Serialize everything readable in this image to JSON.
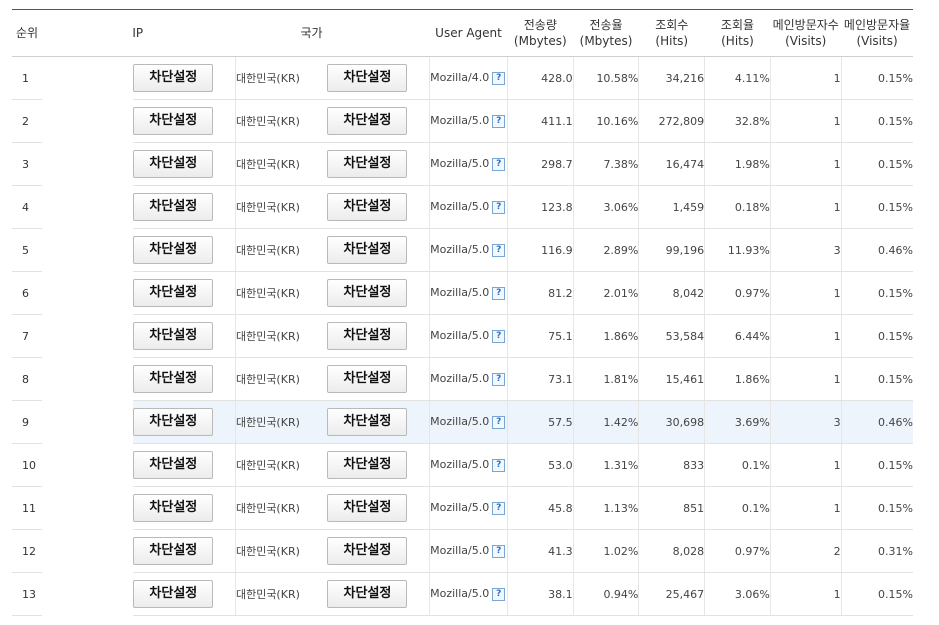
{
  "headers": {
    "rank": "순위",
    "ip": "IP",
    "country": "국가",
    "user_agent": "User Agent",
    "bytes": "전송량",
    "bytes_unit": "(Mbytes)",
    "bytes_rate": "전송율",
    "bytes_rate_unit": "(Mbytes)",
    "hits": "조회수",
    "hits_unit": "(Hits)",
    "hits_rate": "조회율",
    "hits_rate_unit": "(Hits)",
    "visitors": "메인방문자수",
    "visitors_unit": "(Visits)",
    "visitor_rate": "메인방문자율",
    "visitor_rate_unit": "(Visits)"
  },
  "block_label": "차단설정",
  "help_icon": "?",
  "rows": [
    {
      "rank": "1",
      "country": "대한민국(KR)",
      "ua": "Mozilla/4.0",
      "bytes": "428.0",
      "bytes_rate": "10.58%",
      "hits": "34,216",
      "hits_rate": "4.11%",
      "visits": "1",
      "visit_rate": "0.15%"
    },
    {
      "rank": "2",
      "country": "대한민국(KR)",
      "ua": "Mozilla/5.0",
      "bytes": "411.1",
      "bytes_rate": "10.16%",
      "hits": "272,809",
      "hits_rate": "32.8%",
      "visits": "1",
      "visit_rate": "0.15%"
    },
    {
      "rank": "3",
      "country": "대한민국(KR)",
      "ua": "Mozilla/5.0",
      "bytes": "298.7",
      "bytes_rate": "7.38%",
      "hits": "16,474",
      "hits_rate": "1.98%",
      "visits": "1",
      "visit_rate": "0.15%"
    },
    {
      "rank": "4",
      "country": "대한민국(KR)",
      "ua": "Mozilla/5.0",
      "bytes": "123.8",
      "bytes_rate": "3.06%",
      "hits": "1,459",
      "hits_rate": "0.18%",
      "visits": "1",
      "visit_rate": "0.15%"
    },
    {
      "rank": "5",
      "country": "대한민국(KR)",
      "ua": "Mozilla/5.0",
      "bytes": "116.9",
      "bytes_rate": "2.89%",
      "hits": "99,196",
      "hits_rate": "11.93%",
      "visits": "3",
      "visit_rate": "0.46%"
    },
    {
      "rank": "6",
      "country": "대한민국(KR)",
      "ua": "Mozilla/5.0",
      "bytes": "81.2",
      "bytes_rate": "2.01%",
      "hits": "8,042",
      "hits_rate": "0.97%",
      "visits": "1",
      "visit_rate": "0.15%"
    },
    {
      "rank": "7",
      "country": "대한민국(KR)",
      "ua": "Mozilla/5.0",
      "bytes": "75.1",
      "bytes_rate": "1.86%",
      "hits": "53,584",
      "hits_rate": "6.44%",
      "visits": "1",
      "visit_rate": "0.15%"
    },
    {
      "rank": "8",
      "country": "대한민국(KR)",
      "ua": "Mozilla/5.0",
      "bytes": "73.1",
      "bytes_rate": "1.81%",
      "hits": "15,461",
      "hits_rate": "1.86%",
      "visits": "1",
      "visit_rate": "0.15%"
    },
    {
      "rank": "9",
      "country": "대한민국(KR)",
      "ua": "Mozilla/5.0",
      "bytes": "57.5",
      "bytes_rate": "1.42%",
      "hits": "30,698",
      "hits_rate": "3.69%",
      "visits": "3",
      "visit_rate": "0.46%",
      "highlighted": true
    },
    {
      "rank": "10",
      "country": "대한민국(KR)",
      "ua": "Mozilla/5.0",
      "bytes": "53.0",
      "bytes_rate": "1.31%",
      "hits": "833",
      "hits_rate": "0.1%",
      "visits": "1",
      "visit_rate": "0.15%"
    },
    {
      "rank": "11",
      "country": "대한민국(KR)",
      "ua": "Mozilla/5.0",
      "bytes": "45.8",
      "bytes_rate": "1.13%",
      "hits": "851",
      "hits_rate": "0.1%",
      "visits": "1",
      "visit_rate": "0.15%"
    },
    {
      "rank": "12",
      "country": "대한민국(KR)",
      "ua": "Mozilla/5.0",
      "bytes": "41.3",
      "bytes_rate": "1.02%",
      "hits": "8,028",
      "hits_rate": "0.97%",
      "visits": "2",
      "visit_rate": "0.31%"
    },
    {
      "rank": "13",
      "country": "대한민국(KR)",
      "ua": "Mozilla/5.0",
      "bytes": "38.1",
      "bytes_rate": "0.94%",
      "hits": "25,467",
      "hits_rate": "3.06%",
      "visits": "1",
      "visit_rate": "0.15%"
    }
  ]
}
